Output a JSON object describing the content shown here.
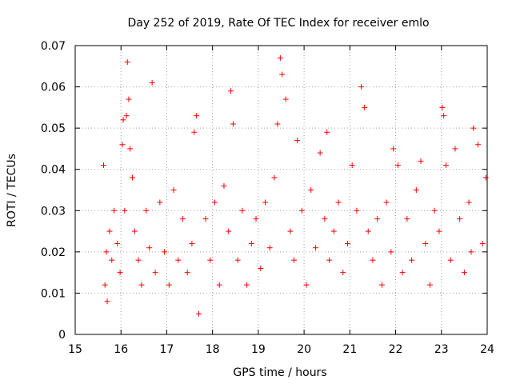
{
  "chart_data": {
    "type": "scatter",
    "title": "Day 252 of 2019, Rate Of TEC Index for receiver emlo",
    "xlabel": "GPS time / hours",
    "ylabel": "ROTI / TECUs",
    "xlim": [
      15,
      24
    ],
    "ylim": [
      0,
      0.07
    ],
    "x_ticks": [
      15,
      16,
      17,
      18,
      19,
      20,
      21,
      22,
      23,
      24
    ],
    "y_ticks": [
      0,
      0.01,
      0.02,
      0.03,
      0.04,
      0.05,
      0.06,
      0.07
    ],
    "x_tick_labels": [
      "15",
      "16",
      "17",
      "18",
      "19",
      "20",
      "21",
      "22",
      "23",
      "24"
    ],
    "y_tick_labels": [
      "0",
      "0.01",
      "0.02",
      "0.03",
      "0.04",
      "0.05",
      "0.06",
      "0.07"
    ],
    "grid": true,
    "marker": "+",
    "color": "#ff0000",
    "series": [
      {
        "name": "ROTI",
        "x": [
          15.62,
          15.65,
          15.68,
          15.7,
          15.75,
          15.8,
          15.85,
          15.92,
          15.98,
          16.03,
          16.05,
          16.08,
          16.12,
          16.14,
          16.17,
          16.2,
          16.25,
          16.3,
          16.38,
          16.45,
          16.55,
          16.62,
          16.68,
          16.75,
          16.85,
          16.95,
          17.05,
          17.15,
          17.25,
          17.35,
          17.45,
          17.55,
          17.6,
          17.65,
          17.7,
          17.85,
          17.95,
          18.05,
          18.15,
          18.25,
          18.35,
          18.4,
          18.45,
          18.55,
          18.65,
          18.75,
          18.85,
          18.95,
          19.05,
          19.15,
          19.25,
          19.35,
          19.42,
          19.48,
          19.52,
          19.6,
          19.7,
          19.78,
          19.85,
          19.95,
          20.05,
          20.15,
          20.25,
          20.35,
          20.45,
          20.5,
          20.55,
          20.65,
          20.75,
          20.85,
          20.95,
          21.05,
          21.15,
          21.25,
          21.32,
          21.4,
          21.5,
          21.6,
          21.7,
          21.8,
          21.9,
          21.95,
          22.05,
          22.15,
          22.25,
          22.35,
          22.45,
          22.55,
          22.65,
          22.75,
          22.85,
          22.95,
          23.02,
          23.05,
          23.1,
          23.2,
          23.3,
          23.4,
          23.5,
          23.6,
          23.65,
          23.7,
          23.8,
          23.9,
          23.97
        ],
        "y": [
          0.041,
          0.012,
          0.02,
          0.008,
          0.025,
          0.018,
          0.03,
          0.022,
          0.015,
          0.046,
          0.052,
          0.03,
          0.053,
          0.066,
          0.057,
          0.045,
          0.038,
          0.025,
          0.018,
          0.012,
          0.03,
          0.021,
          0.061,
          0.015,
          0.032,
          0.02,
          0.012,
          0.035,
          0.018,
          0.028,
          0.015,
          0.022,
          0.049,
          0.053,
          0.005,
          0.028,
          0.018,
          0.032,
          0.012,
          0.036,
          0.025,
          0.059,
          0.051,
          0.018,
          0.03,
          0.012,
          0.022,
          0.028,
          0.016,
          0.032,
          0.021,
          0.038,
          0.051,
          0.067,
          0.063,
          0.057,
          0.025,
          0.018,
          0.047,
          0.03,
          0.012,
          0.035,
          0.021,
          0.044,
          0.028,
          0.049,
          0.018,
          0.025,
          0.032,
          0.015,
          0.022,
          0.041,
          0.03,
          0.06,
          0.055,
          0.025,
          0.018,
          0.028,
          0.012,
          0.032,
          0.02,
          0.045,
          0.041,
          0.015,
          0.028,
          0.018,
          0.035,
          0.042,
          0.022,
          0.012,
          0.03,
          0.025,
          0.055,
          0.053,
          0.041,
          0.018,
          0.045,
          0.028,
          0.015,
          0.032,
          0.02,
          0.05,
          0.046,
          0.022,
          0.038
        ]
      }
    ]
  }
}
